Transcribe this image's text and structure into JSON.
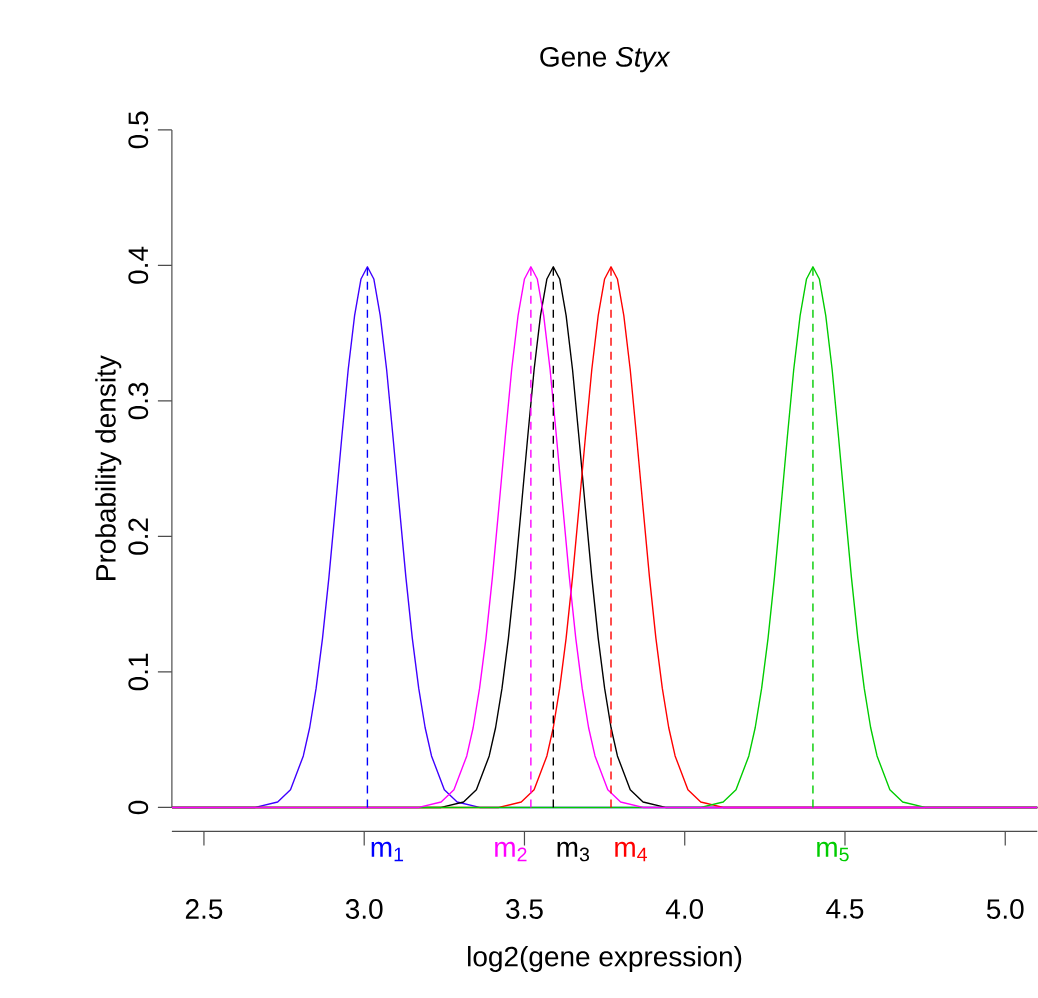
{
  "chart_data": {
    "type": "line",
    "title": "Gene *Styx*",
    "xlabel": "log2(gene expression)",
    "ylabel": "Probability density",
    "xlim": [
      2.4,
      5.1
    ],
    "ylim": [
      0,
      0.5
    ],
    "xticks": [
      2.5,
      {
        "value": 3.0,
        "label": "3.0"
      },
      3.5,
      {
        "value": 4.0,
        "label": "4.0"
      },
      4.5,
      {
        "value": 5.0,
        "label": "5.0"
      }
    ],
    "yticks": [
      0,
      0.1,
      0.2,
      0.3,
      0.4,
      0.5
    ],
    "grid": false,
    "legend": false,
    "marker": "none",
    "line_style": "solid",
    "series": [
      {
        "color": "#3f00ff",
        "x": [
          2.4,
          2.66,
          2.73,
          2.77,
          2.81,
          2.83,
          2.85,
          2.87,
          2.89,
          2.91,
          2.93,
          2.95,
          2.97,
          2.99,
          3.01,
          3.03,
          3.05,
          3.07,
          3.09,
          3.11,
          3.13,
          3.15,
          3.17,
          3.19,
          3.21,
          3.25,
          3.29,
          3.36,
          5.1
        ],
        "values": [
          0,
          0,
          0.004,
          0.013,
          0.038,
          0.059,
          0.088,
          0.125,
          0.17,
          0.221,
          0.273,
          0.323,
          0.363,
          0.39,
          0.399,
          0.39,
          0.363,
          0.323,
          0.273,
          0.221,
          0.17,
          0.125,
          0.088,
          0.059,
          0.038,
          0.013,
          0.004,
          0,
          0
        ]
      },
      {
        "color": "#000000",
        "x": [
          2.4,
          3.24,
          3.31,
          3.35,
          3.39,
          3.41,
          3.43,
          3.45,
          3.47,
          3.49,
          3.51,
          3.53,
          3.55,
          3.57,
          3.59,
          3.61,
          3.63,
          3.65,
          3.67,
          3.69,
          3.71,
          3.73,
          3.75,
          3.77,
          3.79,
          3.83,
          3.87,
          3.94,
          5.1
        ],
        "values": [
          0,
          0,
          0.004,
          0.013,
          0.038,
          0.059,
          0.088,
          0.125,
          0.17,
          0.221,
          0.273,
          0.323,
          0.363,
          0.39,
          0.399,
          0.39,
          0.363,
          0.323,
          0.273,
          0.221,
          0.17,
          0.125,
          0.088,
          0.059,
          0.038,
          0.013,
          0.004,
          0,
          0
        ]
      },
      {
        "color": "#ff0000",
        "x": [
          2.4,
          3.42,
          3.49,
          3.53,
          3.57,
          3.59,
          3.61,
          3.63,
          3.65,
          3.67,
          3.69,
          3.71,
          3.73,
          3.75,
          3.77,
          3.79,
          3.81,
          3.83,
          3.85,
          3.87,
          3.89,
          3.91,
          3.93,
          3.95,
          3.97,
          4.01,
          4.05,
          4.12,
          5.1
        ],
        "values": [
          0,
          0,
          0.004,
          0.013,
          0.038,
          0.059,
          0.088,
          0.125,
          0.17,
          0.221,
          0.273,
          0.323,
          0.363,
          0.39,
          0.399,
          0.39,
          0.363,
          0.323,
          0.273,
          0.221,
          0.17,
          0.125,
          0.088,
          0.059,
          0.038,
          0.013,
          0.004,
          0,
          0
        ]
      },
      {
        "color": "#00cc00",
        "x": [
          2.4,
          4.05,
          4.12,
          4.16,
          4.2,
          4.22,
          4.24,
          4.26,
          4.28,
          4.3,
          4.32,
          4.34,
          4.36,
          4.38,
          4.4,
          4.42,
          4.44,
          4.46,
          4.48,
          4.5,
          4.52,
          4.54,
          4.56,
          4.58,
          4.6,
          4.64,
          4.68,
          4.75,
          5.1
        ],
        "values": [
          0,
          0,
          0.004,
          0.013,
          0.038,
          0.059,
          0.088,
          0.125,
          0.17,
          0.221,
          0.273,
          0.323,
          0.363,
          0.39,
          0.399,
          0.39,
          0.363,
          0.323,
          0.273,
          0.221,
          0.17,
          0.125,
          0.088,
          0.059,
          0.038,
          0.013,
          0.004,
          0,
          0
        ]
      },
      {
        "color": "#ff00ff",
        "x": [
          2.4,
          3.17,
          3.24,
          3.28,
          3.32,
          3.34,
          3.36,
          3.38,
          3.4,
          3.42,
          3.44,
          3.46,
          3.48,
          3.5,
          3.52,
          3.54,
          3.56,
          3.58,
          3.6,
          3.62,
          3.64,
          3.66,
          3.68,
          3.7,
          3.72,
          3.76,
          3.8,
          3.87,
          5.1
        ],
        "values": [
          0,
          0,
          0.004,
          0.013,
          0.038,
          0.059,
          0.088,
          0.125,
          0.17,
          0.221,
          0.273,
          0.323,
          0.363,
          0.39,
          0.399,
          0.39,
          0.363,
          0.323,
          0.273,
          0.221,
          0.17,
          0.125,
          0.088,
          0.059,
          0.038,
          0.013,
          0.004,
          0,
          0
        ]
      }
    ],
    "ref_lines": [
      {
        "axis": "x",
        "value": 3.01,
        "label": "m$_{1}$",
        "color": "#0000ff",
        "line_style": "dashed"
      },
      {
        "axis": "x",
        "value": 3.52,
        "label": "m$_{2}$",
        "color": "#ff00ff",
        "line_style": "dashed"
      },
      {
        "axis": "x",
        "value": 3.59,
        "label": "m$_{3}$",
        "color": "#000000",
        "line_style": "dashed"
      },
      {
        "axis": "x",
        "value": 3.77,
        "label": "m$_{4}$",
        "color": "#ff0000",
        "line_style": "dashed"
      },
      {
        "axis": "x",
        "value": 4.4,
        "label": "m$_{5}$",
        "color": "#00cc00",
        "line_style": "dashed"
      }
    ]
  }
}
